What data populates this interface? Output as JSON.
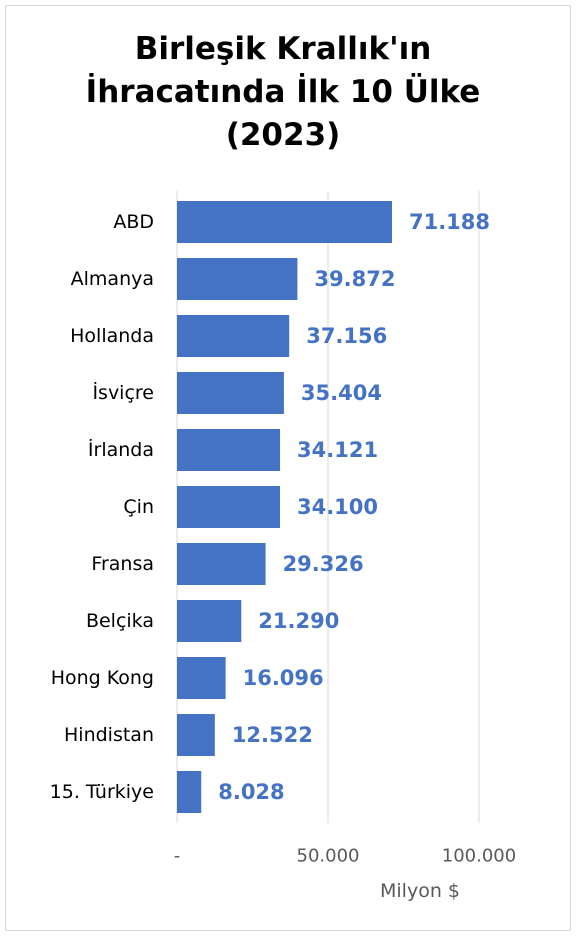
{
  "chart_data": {
    "type": "bar",
    "orientation": "horizontal",
    "title": [
      "Birleşik Krallık'ın",
      "İhracatında İlk 10 Ülke",
      "(2023)"
    ],
    "categories": [
      "ABD",
      "Almanya",
      "Hollanda",
      "İsviçre",
      "İrlanda",
      "Çin",
      "Fransa",
      "Belçika",
      "Hong Kong",
      "Hindistan",
      "15. Türkiye"
    ],
    "values": [
      71188,
      39872,
      37156,
      35404,
      34121,
      34100,
      29326,
      21290,
      16096,
      12522,
      8028
    ],
    "value_labels": [
      "71.188",
      "39.872",
      "37.156",
      "35.404",
      "34.121",
      "34.100",
      "29.326",
      "21.290",
      "16.096",
      "12.522",
      "8.028"
    ],
    "xlim": [
      0,
      100000
    ],
    "xticks": [
      0,
      50000,
      100000
    ],
    "xtick_labels": [
      "-",
      "50.000",
      "100.000"
    ],
    "xlabel": "Milyon $",
    "ylabel": "",
    "grid": "vertical",
    "legend": "none",
    "colors": {
      "bar": "#4472C4",
      "label": "#4472C4",
      "grid": "#d9d9d9",
      "text": "#000000",
      "axis_text": "#595959"
    }
  }
}
